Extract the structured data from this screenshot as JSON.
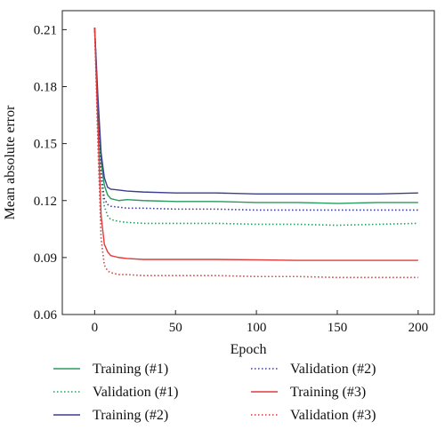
{
  "chart_data": {
    "type": "line",
    "xlabel": "Epoch",
    "ylabel": "Mean absolute error",
    "xlim": [
      -20,
      210
    ],
    "ylim": [
      0.06,
      0.22
    ],
    "xticks": [
      0,
      50,
      100,
      150,
      200
    ],
    "yticks": [
      0.06,
      0.09,
      0.12,
      0.15,
      0.18,
      0.21
    ],
    "ytick_labels": [
      "0.06",
      "0.09",
      "0.12",
      "0.15",
      "0.18",
      "0.21"
    ],
    "grid": false,
    "legend_placement": "bottom",
    "series": [
      {
        "name": "Training (#1)",
        "color": "#2a9a5e",
        "dash": "solid",
        "x": [
          0,
          2,
          4,
          6,
          8,
          10,
          15,
          20,
          30,
          50,
          75,
          100,
          125,
          150,
          175,
          200
        ],
        "y": [
          0.211,
          0.17,
          0.14,
          0.128,
          0.123,
          0.121,
          0.12,
          0.1205,
          0.12,
          0.1195,
          0.1195,
          0.119,
          0.119,
          0.1185,
          0.119,
          0.119
        ]
      },
      {
        "name": "Validation (#1)",
        "color": "#2a9a5e",
        "dash": "dotted",
        "x": [
          0,
          2,
          4,
          6,
          8,
          10,
          15,
          20,
          30,
          50,
          75,
          100,
          125,
          150,
          175,
          200
        ],
        "y": [
          0.211,
          0.165,
          0.13,
          0.117,
          0.112,
          0.11,
          0.109,
          0.1085,
          0.108,
          0.108,
          0.108,
          0.1075,
          0.1075,
          0.107,
          0.1075,
          0.108
        ]
      },
      {
        "name": "Training (#2)",
        "color": "#3b3e8f",
        "dash": "solid",
        "x": [
          0,
          2,
          4,
          6,
          8,
          10,
          15,
          20,
          30,
          50,
          75,
          100,
          125,
          150,
          175,
          200
        ],
        "y": [
          0.211,
          0.175,
          0.145,
          0.132,
          0.127,
          0.126,
          0.1255,
          0.125,
          0.1245,
          0.124,
          0.124,
          0.1235,
          0.1235,
          0.1235,
          0.1235,
          0.124
        ]
      },
      {
        "name": "Validation (#2)",
        "color": "#3b3e8f",
        "dash": "dotted",
        "x": [
          0,
          2,
          4,
          6,
          8,
          10,
          15,
          20,
          30,
          50,
          75,
          100,
          125,
          150,
          175,
          200
        ],
        "y": [
          0.211,
          0.17,
          0.135,
          0.121,
          0.118,
          0.117,
          0.1165,
          0.116,
          0.116,
          0.1155,
          0.1155,
          0.115,
          0.115,
          0.115,
          0.115,
          0.115
        ]
      },
      {
        "name": "Training (#3)",
        "color": "#e03a3a",
        "dash": "solid",
        "x": [
          0,
          2,
          4,
          6,
          8,
          10,
          15,
          20,
          30,
          50,
          75,
          100,
          125,
          150,
          175,
          200
        ],
        "y": [
          0.211,
          0.16,
          0.112,
          0.097,
          0.093,
          0.091,
          0.09,
          0.0895,
          0.089,
          0.089,
          0.089,
          0.0888,
          0.0885,
          0.0885,
          0.0885,
          0.0885
        ]
      },
      {
        "name": "Validation (#3)",
        "color": "#e03a3a",
        "dash": "dotted",
        "x": [
          0,
          2,
          4,
          6,
          8,
          10,
          15,
          20,
          30,
          50,
          75,
          100,
          125,
          150,
          175,
          200
        ],
        "y": [
          0.211,
          0.15,
          0.1,
          0.086,
          0.083,
          0.082,
          0.081,
          0.081,
          0.0805,
          0.0805,
          0.0805,
          0.08,
          0.08,
          0.0795,
          0.0795,
          0.0795
        ]
      }
    ]
  }
}
